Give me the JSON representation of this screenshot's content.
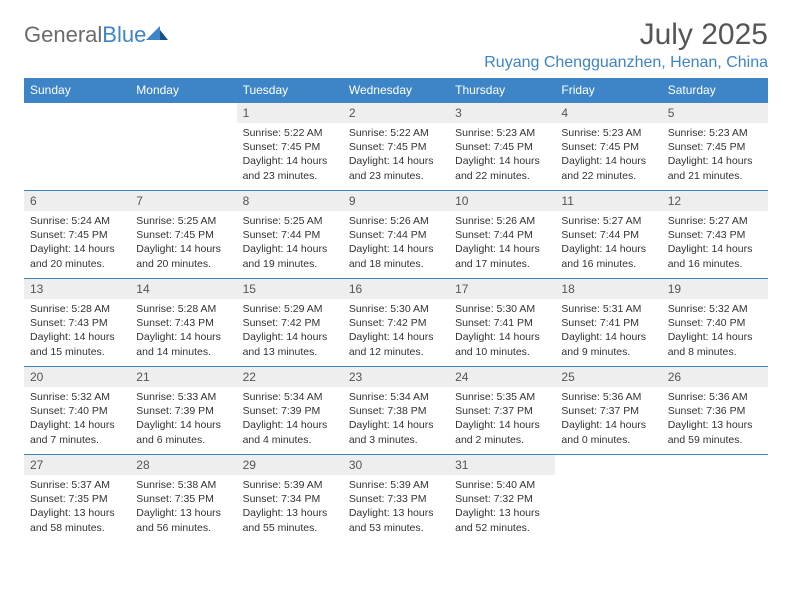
{
  "brand": {
    "part1": "General",
    "part2": "Blue"
  },
  "title": "July 2025",
  "location": "Ruyang Chengguanzhen, Henan, China",
  "colors": {
    "accent": "#3d85c6",
    "header_text": "#555555",
    "cell_header_bg": "#eeeeee",
    "body_text": "#333333"
  },
  "weekdays": [
    "Sunday",
    "Monday",
    "Tuesday",
    "Wednesday",
    "Thursday",
    "Friday",
    "Saturday"
  ],
  "weeks": [
    [
      null,
      null,
      {
        "n": "1",
        "sr": "5:22 AM",
        "ss": "7:45 PM",
        "dl": "14 hours and 23 minutes."
      },
      {
        "n": "2",
        "sr": "5:22 AM",
        "ss": "7:45 PM",
        "dl": "14 hours and 23 minutes."
      },
      {
        "n": "3",
        "sr": "5:23 AM",
        "ss": "7:45 PM",
        "dl": "14 hours and 22 minutes."
      },
      {
        "n": "4",
        "sr": "5:23 AM",
        "ss": "7:45 PM",
        "dl": "14 hours and 22 minutes."
      },
      {
        "n": "5",
        "sr": "5:23 AM",
        "ss": "7:45 PM",
        "dl": "14 hours and 21 minutes."
      }
    ],
    [
      {
        "n": "6",
        "sr": "5:24 AM",
        "ss": "7:45 PM",
        "dl": "14 hours and 20 minutes."
      },
      {
        "n": "7",
        "sr": "5:25 AM",
        "ss": "7:45 PM",
        "dl": "14 hours and 20 minutes."
      },
      {
        "n": "8",
        "sr": "5:25 AM",
        "ss": "7:44 PM",
        "dl": "14 hours and 19 minutes."
      },
      {
        "n": "9",
        "sr": "5:26 AM",
        "ss": "7:44 PM",
        "dl": "14 hours and 18 minutes."
      },
      {
        "n": "10",
        "sr": "5:26 AM",
        "ss": "7:44 PM",
        "dl": "14 hours and 17 minutes."
      },
      {
        "n": "11",
        "sr": "5:27 AM",
        "ss": "7:44 PM",
        "dl": "14 hours and 16 minutes."
      },
      {
        "n": "12",
        "sr": "5:27 AM",
        "ss": "7:43 PM",
        "dl": "14 hours and 16 minutes."
      }
    ],
    [
      {
        "n": "13",
        "sr": "5:28 AM",
        "ss": "7:43 PM",
        "dl": "14 hours and 15 minutes."
      },
      {
        "n": "14",
        "sr": "5:28 AM",
        "ss": "7:43 PM",
        "dl": "14 hours and 14 minutes."
      },
      {
        "n": "15",
        "sr": "5:29 AM",
        "ss": "7:42 PM",
        "dl": "14 hours and 13 minutes."
      },
      {
        "n": "16",
        "sr": "5:30 AM",
        "ss": "7:42 PM",
        "dl": "14 hours and 12 minutes."
      },
      {
        "n": "17",
        "sr": "5:30 AM",
        "ss": "7:41 PM",
        "dl": "14 hours and 10 minutes."
      },
      {
        "n": "18",
        "sr": "5:31 AM",
        "ss": "7:41 PM",
        "dl": "14 hours and 9 minutes."
      },
      {
        "n": "19",
        "sr": "5:32 AM",
        "ss": "7:40 PM",
        "dl": "14 hours and 8 minutes."
      }
    ],
    [
      {
        "n": "20",
        "sr": "5:32 AM",
        "ss": "7:40 PM",
        "dl": "14 hours and 7 minutes."
      },
      {
        "n": "21",
        "sr": "5:33 AM",
        "ss": "7:39 PM",
        "dl": "14 hours and 6 minutes."
      },
      {
        "n": "22",
        "sr": "5:34 AM",
        "ss": "7:39 PM",
        "dl": "14 hours and 4 minutes."
      },
      {
        "n": "23",
        "sr": "5:34 AM",
        "ss": "7:38 PM",
        "dl": "14 hours and 3 minutes."
      },
      {
        "n": "24",
        "sr": "5:35 AM",
        "ss": "7:37 PM",
        "dl": "14 hours and 2 minutes."
      },
      {
        "n": "25",
        "sr": "5:36 AM",
        "ss": "7:37 PM",
        "dl": "14 hours and 0 minutes."
      },
      {
        "n": "26",
        "sr": "5:36 AM",
        "ss": "7:36 PM",
        "dl": "13 hours and 59 minutes."
      }
    ],
    [
      {
        "n": "27",
        "sr": "5:37 AM",
        "ss": "7:35 PM",
        "dl": "13 hours and 58 minutes."
      },
      {
        "n": "28",
        "sr": "5:38 AM",
        "ss": "7:35 PM",
        "dl": "13 hours and 56 minutes."
      },
      {
        "n": "29",
        "sr": "5:39 AM",
        "ss": "7:34 PM",
        "dl": "13 hours and 55 minutes."
      },
      {
        "n": "30",
        "sr": "5:39 AM",
        "ss": "7:33 PM",
        "dl": "13 hours and 53 minutes."
      },
      {
        "n": "31",
        "sr": "5:40 AM",
        "ss": "7:32 PM",
        "dl": "13 hours and 52 minutes."
      },
      null,
      null
    ]
  ],
  "labels": {
    "sunrise": "Sunrise:",
    "sunset": "Sunset:",
    "daylight": "Daylight:"
  }
}
